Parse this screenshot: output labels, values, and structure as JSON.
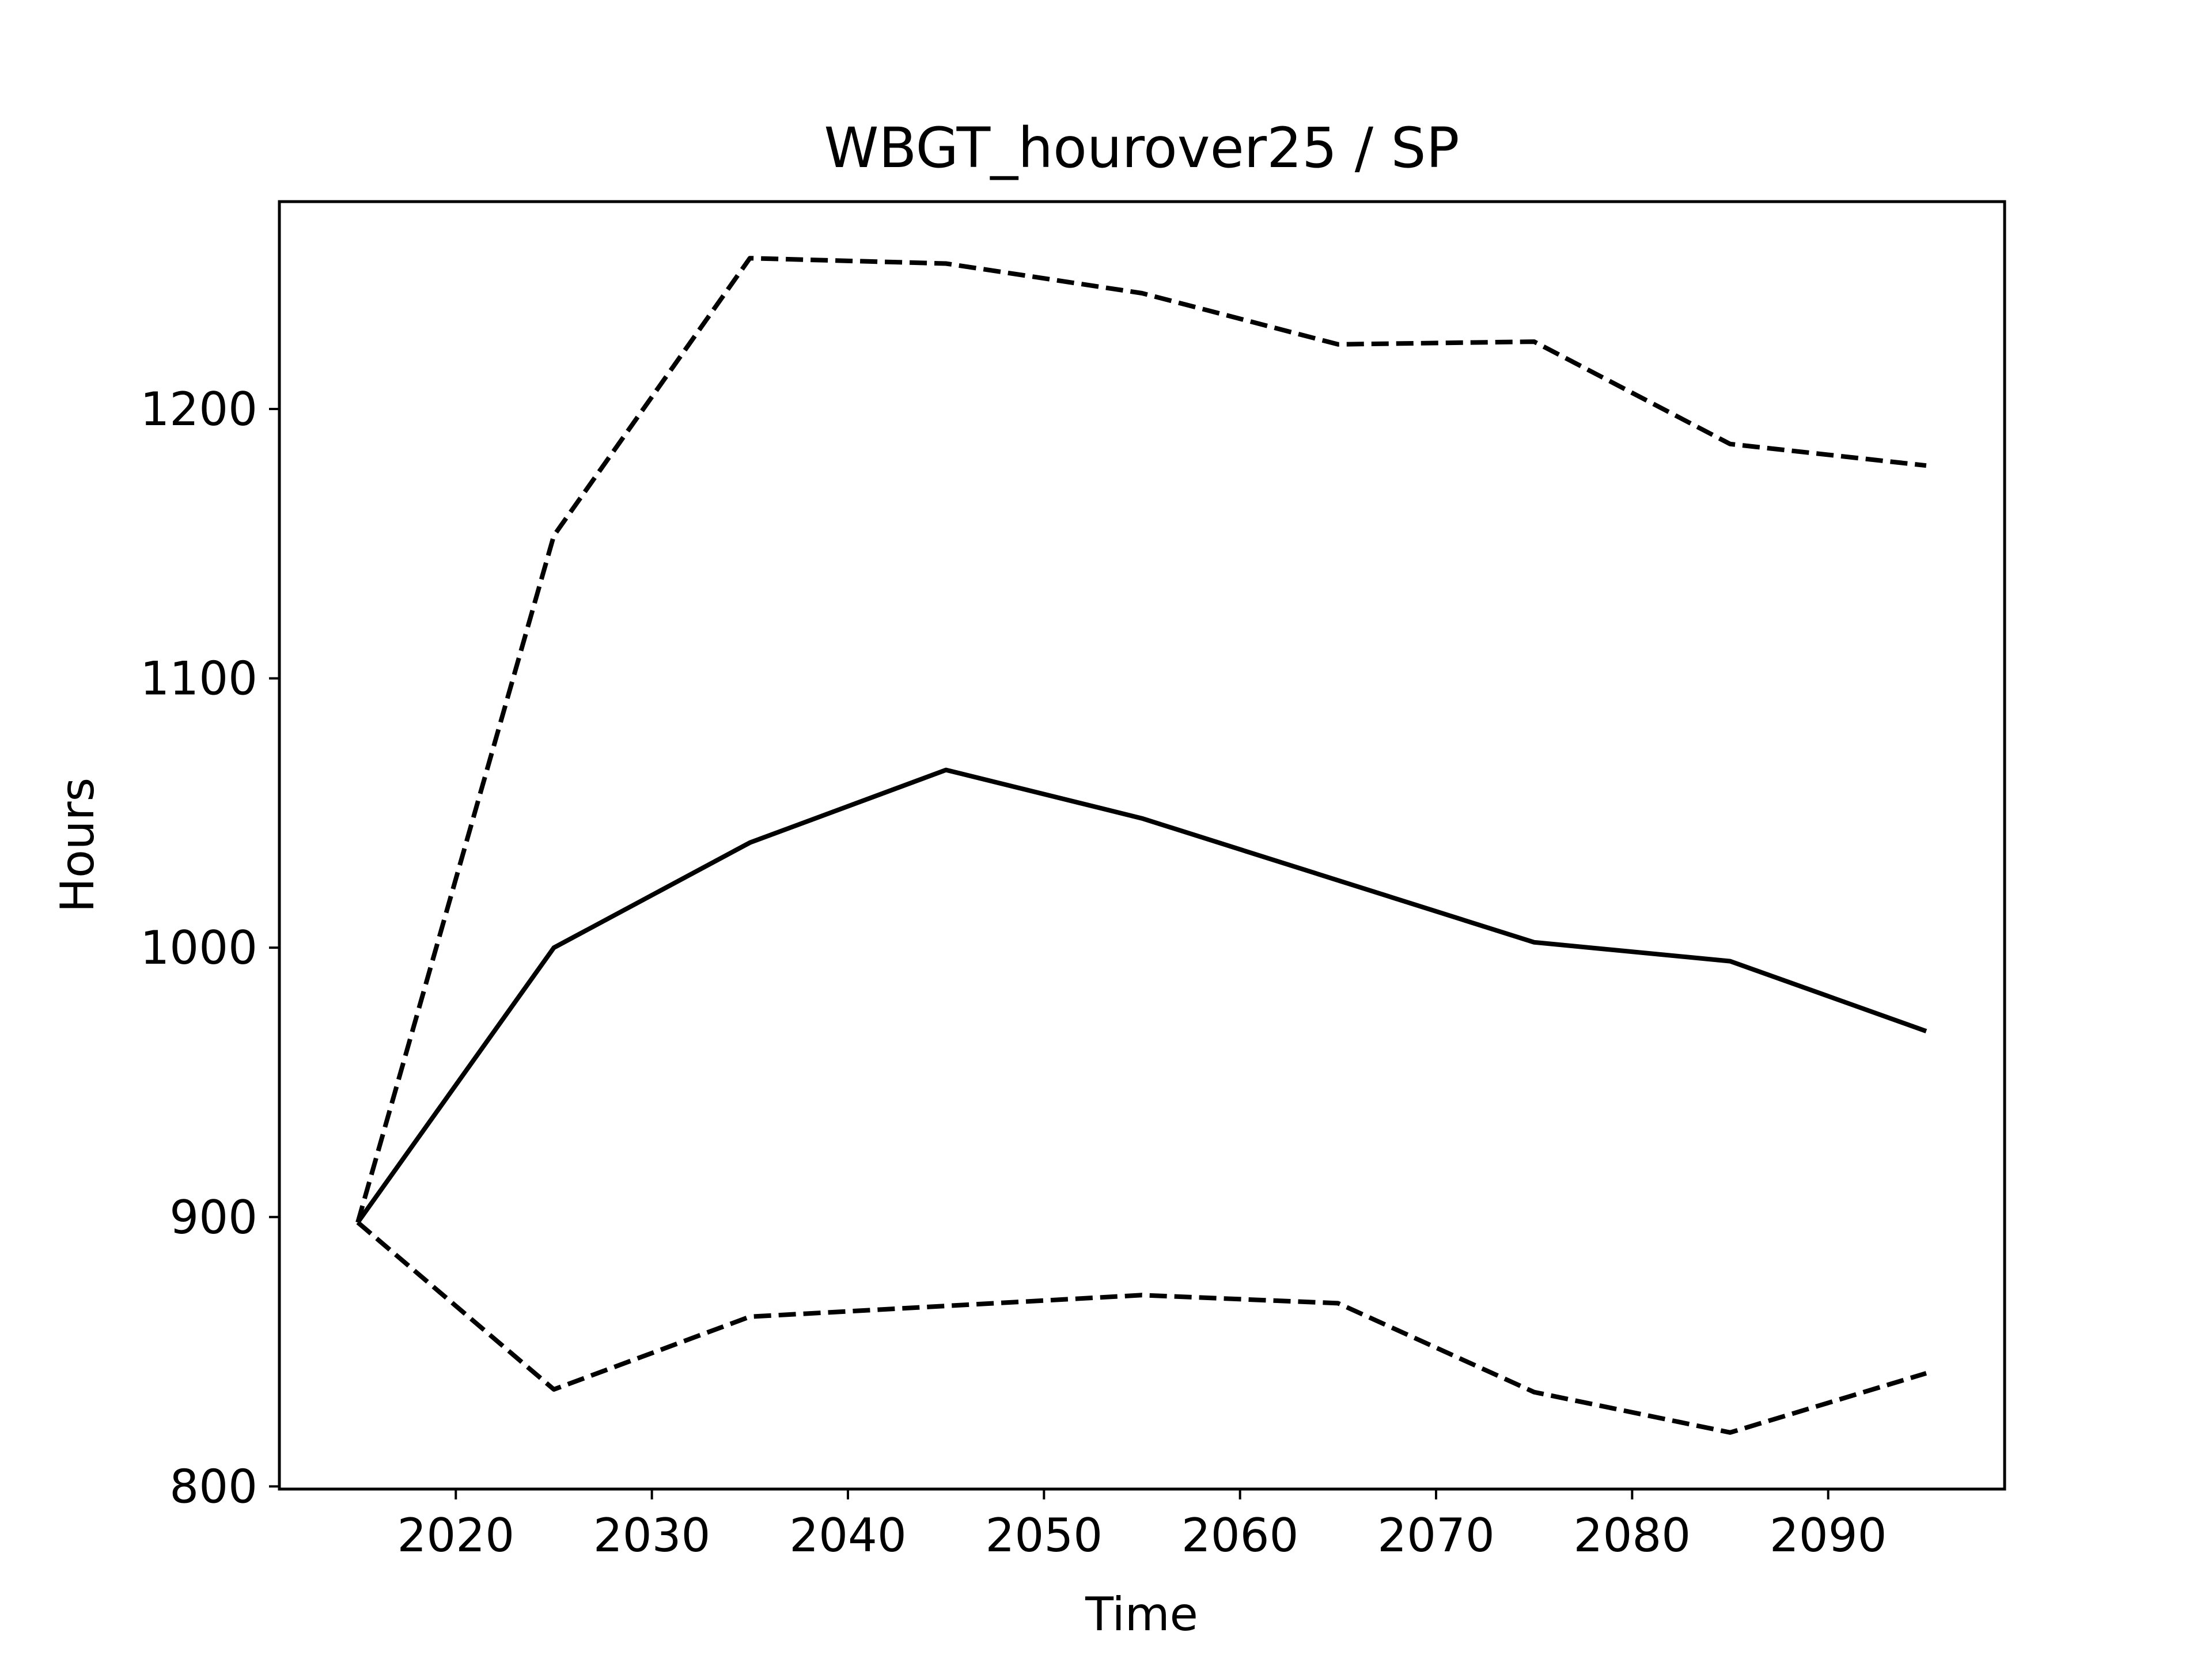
{
  "chart_data": {
    "type": "line",
    "title": "WBGT_hourover25 / SP",
    "xlabel": "Time",
    "ylabel": "Hours",
    "xlim": [
      2011,
      2099
    ],
    "ylim": [
      799,
      1277
    ],
    "xticks": [
      2020,
      2030,
      2040,
      2050,
      2060,
      2070,
      2080,
      2090
    ],
    "yticks": [
      800,
      900,
      1000,
      1100,
      1200
    ],
    "grid": false,
    "legend": "none",
    "line_color": "#000000",
    "x": [
      2015,
      2025,
      2035,
      2045,
      2055,
      2065,
      2075,
      2085,
      2095
    ],
    "series": [
      {
        "style": "dashed",
        "values": [
          898,
          1153,
          1256,
          1254,
          1243,
          1224,
          1225,
          1187,
          1179
        ]
      },
      {
        "style": "solid",
        "values": [
          898,
          1000,
          1039,
          1066,
          1048,
          1025,
          1002,
          995,
          969
        ]
      },
      {
        "style": "dashed",
        "values": [
          898,
          836,
          863,
          867,
          871,
          868,
          835,
          820,
          842
        ]
      }
    ]
  }
}
